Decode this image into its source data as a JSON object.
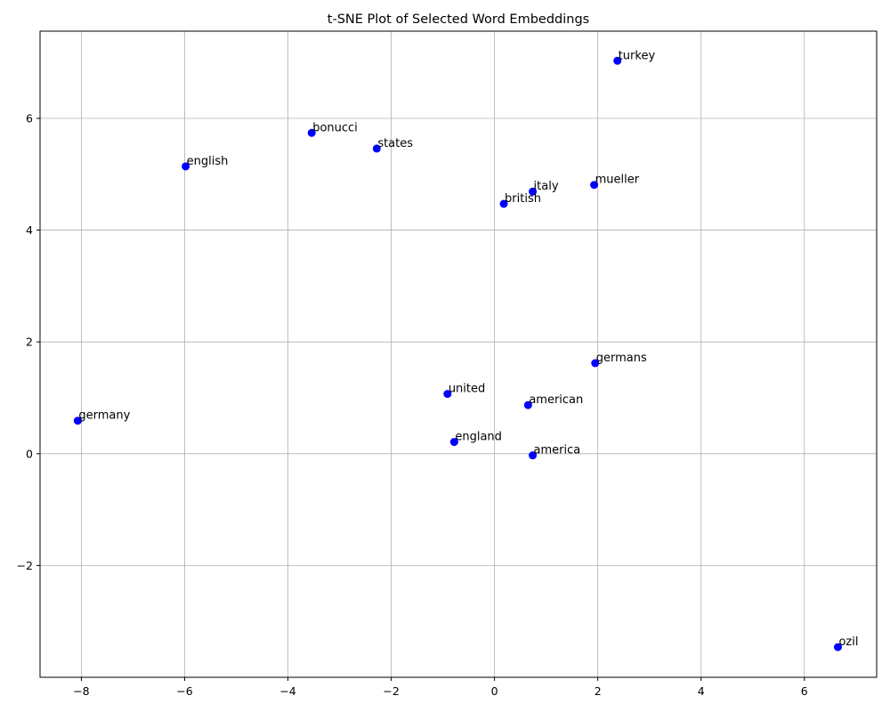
{
  "chart_data": {
    "type": "scatter",
    "title": "t-SNE Plot of Selected Word Embeddings",
    "xlabel": "",
    "ylabel": "",
    "xlim": [
      -8.8,
      7.4
    ],
    "ylim": [
      -4.0,
      7.56
    ],
    "x_ticks": [
      -8,
      -6,
      -4,
      -2,
      0,
      2,
      4,
      6
    ],
    "y_ticks": [
      -2,
      0,
      2,
      4,
      6
    ],
    "x_tick_labels": [
      "−8",
      "−6",
      "−4",
      "−2",
      "0",
      "2",
      "4",
      "6"
    ],
    "y_tick_labels": [
      "−2",
      "0",
      "2",
      "4",
      "6"
    ],
    "grid": true,
    "marker_color": "#0000ff",
    "points": [
      {
        "label": "turkey",
        "x": 2.38,
        "y": 7.03
      },
      {
        "label": "bonucci",
        "x": -3.54,
        "y": 5.74
      },
      {
        "label": "states",
        "x": -2.28,
        "y": 5.46
      },
      {
        "label": "english",
        "x": -5.98,
        "y": 5.14
      },
      {
        "label": "mueller",
        "x": 1.93,
        "y": 4.81
      },
      {
        "label": "italy",
        "x": 0.74,
        "y": 4.69
      },
      {
        "label": "british",
        "x": 0.18,
        "y": 4.47
      },
      {
        "label": "germans",
        "x": 1.95,
        "y": 1.62
      },
      {
        "label": "united",
        "x": -0.91,
        "y": 1.07
      },
      {
        "label": "american",
        "x": 0.65,
        "y": 0.87
      },
      {
        "label": "germany",
        "x": -8.07,
        "y": 0.59
      },
      {
        "label": "england",
        "x": -0.78,
        "y": 0.21
      },
      {
        "label": "america",
        "x": 0.74,
        "y": -0.03
      },
      {
        "label": "ozil",
        "x": 6.65,
        "y": -3.46
      }
    ]
  }
}
